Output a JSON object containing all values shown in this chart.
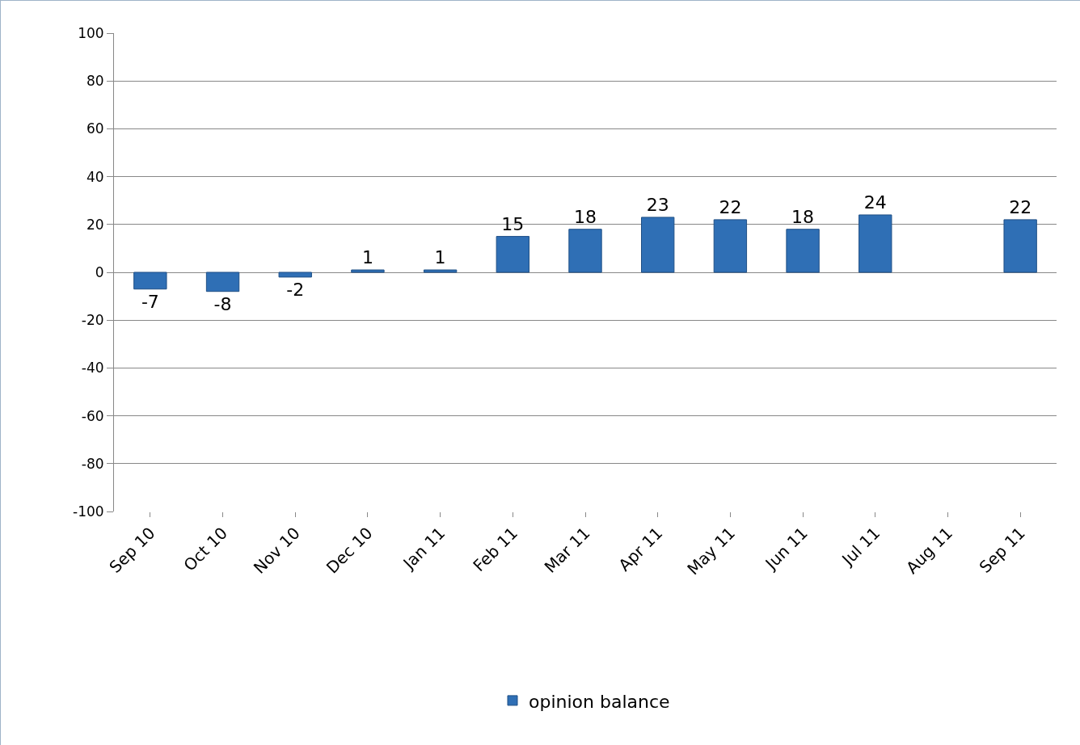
{
  "chart_data": {
    "type": "bar",
    "categories": [
      "Sep 10",
      "Oct 10",
      "Nov 10",
      "Dec 10",
      "Jan 11",
      "Feb 11",
      "Mar 11",
      "Apr 11",
      "May 11",
      "Jun 11",
      "Jul 11",
      "Aug 11",
      "Sep 11"
    ],
    "series": [
      {
        "name": "opinion balance",
        "color": "#2f6fb5",
        "values": [
          -7,
          -8,
          -2,
          1,
          1,
          15,
          18,
          23,
          22,
          18,
          24,
          null,
          22
        ]
      }
    ],
    "ylim": [
      -100,
      100
    ],
    "yticks": [
      -100,
      -80,
      -60,
      -40,
      -20,
      0,
      20,
      40,
      60,
      80,
      100
    ],
    "grid": "y",
    "legend": "bottom",
    "data_labels": true
  }
}
